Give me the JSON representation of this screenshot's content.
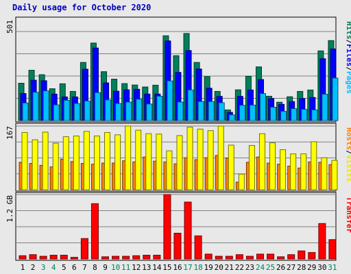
{
  "title": "Daily usage for October 2020",
  "chart_data": {
    "type": "bar",
    "title": "Daily usage for October 2020",
    "categories": [
      "1",
      "2",
      "3",
      "4",
      "5",
      "6",
      "7",
      "8",
      "9",
      "10",
      "11",
      "12",
      "13",
      "14",
      "15",
      "16",
      "17",
      "18",
      "19",
      "20",
      "21",
      "22",
      "23",
      "24",
      "25",
      "26",
      "27",
      "28",
      "29",
      "30",
      "31"
    ],
    "weekend_days": [
      "3",
      "4",
      "10",
      "11",
      "17",
      "18",
      "24",
      "25",
      "31"
    ],
    "panels": [
      {
        "id": "hits-files-pages",
        "ymax_label": "501",
        "ymax": 501,
        "side_labels": [
          {
            "text": "Hits",
            "color": "#00805C"
          },
          {
            "text": "/",
            "color": "#000000"
          },
          {
            "text": "Files",
            "color": "#0000FF"
          },
          {
            "text": "/",
            "color": "#000000"
          },
          {
            "text": "Pages",
            "color": "#00C0FF"
          }
        ],
        "series": [
          {
            "name": "Hits",
            "color": "#00805C",
            "values": [
              210,
              283,
              258,
              179,
              207,
              164,
              327,
              436,
              275,
              233,
              208,
              200,
              189,
              199,
              477,
              365,
              490,
              327,
              247,
              164,
              60,
              173,
              249,
              302,
              137,
              103,
              134,
              164,
              172,
              392,
              450
            ]
          },
          {
            "name": "Files",
            "color": "#0000FF",
            "values": [
              152,
              227,
              224,
              149,
              133,
              133,
              289,
              408,
              212,
              165,
              173,
              176,
              149,
              149,
              448,
              271,
              394,
              290,
              182,
              136,
              46,
              136,
              172,
              231,
              124,
              91,
              107,
              124,
              130,
              348,
              403
            ]
          },
          {
            "name": "Pages",
            "color": "#00C0FF",
            "values": [
              99,
              159,
              167,
              88,
              114,
              96,
              110,
              157,
              116,
              96,
              104,
              120,
              93,
              137,
              223,
              104,
              172,
              107,
              107,
              100,
              32,
              86,
              87,
              152,
              75,
              52,
              67,
              63,
              60,
              148,
              239
            ]
          }
        ]
      },
      {
        "id": "hosts-visits",
        "ymax_label": "167",
        "ymax": 167,
        "side_labels": [
          {
            "text": "Hosts",
            "color": "#FF8000"
          },
          {
            "text": "/",
            "color": "#000000"
          },
          {
            "text": "Visits",
            "color": "#E8E800"
          }
        ],
        "series": [
          {
            "name": "Hosts",
            "color": "#FF8000",
            "values": [
              72,
              69,
              64,
              60,
              80,
              74,
              69,
              67,
              70,
              70,
              76,
              73,
              86,
              75,
              73,
              68,
              84,
              79,
              84,
              90,
              83,
              20,
              72,
              86,
              70,
              67,
              62,
              57,
              73,
              72,
              66
            ]
          },
          {
            "name": "Visits",
            "color": "#FFFF00",
            "values": [
              150,
              131,
              151,
              122,
              139,
              141,
              153,
              141,
              150,
              144,
              167,
              156,
              147,
              146,
              102,
              142,
              164,
              159,
              155,
              167,
              117,
              41,
              116,
              147,
              123,
              105,
              94,
              94,
              126,
              84,
              77
            ]
          }
        ]
      },
      {
        "id": "transfer",
        "ymax_label": "1.2 GB",
        "ymax": 1.2,
        "unit": "GB",
        "side_labels": [
          {
            "text": "Transfer",
            "color": "#FF0000"
          }
        ],
        "series": [
          {
            "name": "Transfer",
            "color": "#FF0000",
            "values": [
              0.06,
              0.08,
              0.05,
              0.07,
              0.07,
              0.03,
              0.38,
              1.03,
              0.04,
              0.05,
              0.05,
              0.06,
              0.07,
              0.07,
              1.2,
              0.48,
              1.06,
              0.43,
              0.09,
              0.05,
              0.05,
              0.08,
              0.05,
              0.09,
              0.09,
              0.04,
              0.08,
              0.15,
              0.12,
              0.66,
              0.36
            ]
          }
        ]
      }
    ]
  }
}
